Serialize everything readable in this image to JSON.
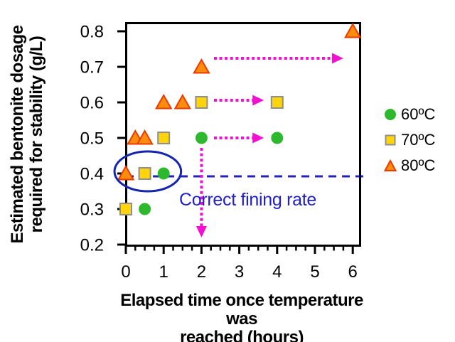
{
  "chart_data": {
    "type": "scatter",
    "title": "",
    "xlabel": "Elapsed time once temperature was reached (hours)",
    "ylabel": "Estimated bentonite dosage required for stability (g/L)",
    "xlabel_lines": [
      "Elapsed time once temperature was",
      "reached (hours)"
    ],
    "ylabel_lines": [
      "Estimated bentonite dosage",
      "required for stability (g/L)"
    ],
    "x_ticks": [
      "0",
      "1",
      "2",
      "3",
      "4",
      "5",
      "6"
    ],
    "y_ticks": [
      "0.2",
      "0.3",
      "0.4",
      "0.5",
      "0.6",
      "0.7",
      "0.8"
    ],
    "x_minor_tick_step": 0.25,
    "x_range": [
      0,
      6.26
    ],
    "y_range": [
      0.194,
      0.824
    ],
    "grid": false,
    "legend_position": "right-outside",
    "series": [
      {
        "name": "60ºC",
        "marker": "circle",
        "fill": "#2eb82e",
        "stroke": "#2eb82e",
        "points": [
          [
            0.5,
            0.3
          ],
          [
            1,
            0.4
          ],
          [
            2,
            0.5
          ],
          [
            4,
            0.5
          ]
        ]
      },
      {
        "name": "70ºC",
        "marker": "square",
        "fill": "#ffd40a",
        "stroke": "#8f8f8f",
        "points": [
          [
            0,
            0.3
          ],
          [
            0.5,
            0.4
          ],
          [
            1,
            0.5
          ],
          [
            2,
            0.6
          ],
          [
            4,
            0.6
          ]
        ]
      },
      {
        "name": "80ºC",
        "marker": "triangle",
        "fill": "#ff8c0d",
        "stroke": "#ea3a00",
        "points": [
          [
            0,
            0.4
          ],
          [
            0.25,
            0.5
          ],
          [
            0.5,
            0.5
          ],
          [
            1,
            0.6
          ],
          [
            1.5,
            0.6
          ],
          [
            2,
            0.7
          ],
          [
            6,
            0.8
          ]
        ]
      }
    ],
    "annotations": {
      "arrow_color": "#f410d0",
      "horizontal_arrows": [
        {
          "y": 0.724,
          "x_start": 2.33,
          "x_end": 5.75
        },
        {
          "y": 0.606,
          "x_start": 2.33,
          "x_end": 3.65
        },
        {
          "y": 0.5,
          "x_start": 2.33,
          "x_end": 3.65
        }
      ],
      "vertical_arrow": {
        "x": 2,
        "y_start": 0.472,
        "y_end": 0.22
      },
      "dashed_line": {
        "y": 0.392,
        "x_start": 0,
        "x_end": 6.2,
        "color": "#2323b8"
      },
      "ellipse": {
        "cx": 0.58,
        "cy": 0.406,
        "rx": 0.88,
        "ry": 0.056,
        "color": "#1525ad"
      },
      "text": {
        "label": "Correct fining rate",
        "x": 1.41,
        "y": 0.326,
        "color": "#2020cc"
      }
    }
  }
}
